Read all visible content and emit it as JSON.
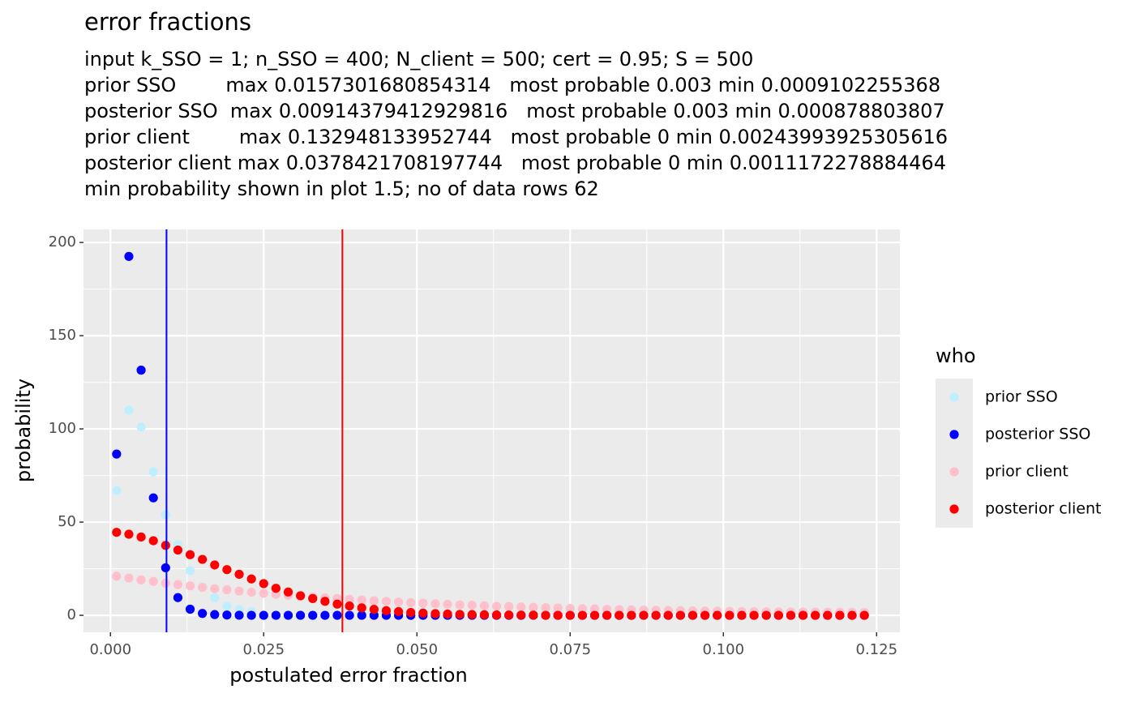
{
  "chart_data": {
    "type": "scatter",
    "title": "error fractions",
    "subtitle": [
      "input k_SSO = 1; n_SSO = 400; N_client = 500; cert = 0.95; S = 500",
      "prior SSO        max 0.0157301680854314   most probable 0.003 min 0.0009102255368",
      "posterior SSO  max 0.00914379412929816   most probable 0.003 min 0.000878803807",
      "prior client        max 0.132948133952744   most probable 0 min 0.00243993925305616",
      "posterior client max 0.0378421708197744   most probable 0 min 0.0011172278884464",
      "min probability shown in plot 1.5; no of data rows 62"
    ],
    "x_label": "postulated error fraction",
    "y_label": "probability",
    "legend_title": "who",
    "x": [
      0.001,
      0.003,
      0.005,
      0.007,
      0.009,
      0.011,
      0.013,
      0.015,
      0.017,
      0.019,
      0.021,
      0.023,
      0.025,
      0.027,
      0.029,
      0.031,
      0.033,
      0.035,
      0.037,
      0.039,
      0.041,
      0.043,
      0.045,
      0.047,
      0.049,
      0.051,
      0.053,
      0.055,
      0.057,
      0.059,
      0.061,
      0.063,
      0.065,
      0.067,
      0.069,
      0.071,
      0.073,
      0.075,
      0.077,
      0.079,
      0.081,
      0.083,
      0.085,
      0.087,
      0.089,
      0.091,
      0.093,
      0.095,
      0.097,
      0.099,
      0.101,
      0.103,
      0.105,
      0.107,
      0.109,
      0.111,
      0.113,
      0.115,
      0.117,
      0.119,
      0.121,
      0.123
    ],
    "series": [
      {
        "name": "prior SSO",
        "color": "#bfefff",
        "values": [
          67,
          110,
          101,
          77,
          54,
          38,
          24,
          15,
          9.5,
          5,
          3,
          2,
          null,
          null,
          null,
          null,
          null,
          null,
          null,
          null,
          null,
          null,
          null,
          null,
          null,
          null,
          null,
          null,
          null,
          null,
          null,
          null,
          null,
          null,
          null,
          null,
          null,
          null,
          null,
          null,
          null,
          null,
          null,
          null,
          null,
          null,
          null,
          null,
          null,
          null,
          null,
          null,
          null,
          null,
          null,
          null,
          null,
          null,
          null,
          null,
          null,
          null
        ]
      },
      {
        "name": "posterior SSO",
        "color": "#0000ff",
        "values": [
          86.5,
          192.5,
          131.5,
          63,
          25.5,
          9.5,
          3.3,
          1,
          0.4,
          0.15,
          0.05,
          0,
          0,
          0,
          0,
          0,
          0,
          0,
          0,
          0,
          0,
          0,
          0,
          0,
          0,
          0,
          0,
          0,
          0,
          0,
          0,
          0,
          0,
          0,
          0,
          0,
          0,
          0,
          0,
          0,
          0,
          0,
          0,
          0,
          0,
          0,
          0,
          0,
          0,
          0,
          0,
          0,
          0,
          0,
          0,
          0,
          0,
          0,
          0,
          0,
          0,
          0
        ]
      },
      {
        "name": "prior client",
        "color": "#ffc0cb",
        "values": [
          21,
          20,
          19,
          18.2,
          17.3,
          16.5,
          15.8,
          15,
          14.3,
          13.7,
          13,
          12.4,
          11.8,
          11.3,
          10.8,
          10.3,
          9.8,
          9.4,
          9,
          8.6,
          8.2,
          7.8,
          7.5,
          7.1,
          6.8,
          6.5,
          6.2,
          5.9,
          5.6,
          5.4,
          5.1,
          4.9,
          4.7,
          4.5,
          4.3,
          4.1,
          3.9,
          3.7,
          3.5,
          3.4,
          3.2,
          3.1,
          2.9,
          2.8,
          2.7,
          2.6,
          2.5,
          2.4,
          2.3,
          2.2,
          2.1,
          2.0,
          1.95,
          1.9,
          1.85,
          1.8,
          1.75,
          1.7,
          1.65,
          1.6,
          1.55,
          1.5
        ]
      },
      {
        "name": "posterior client",
        "color": "#ff0000",
        "values": [
          44.5,
          43.5,
          42,
          40,
          37.5,
          35,
          32.5,
          30,
          27,
          24.5,
          22,
          19.5,
          17,
          14.5,
          12.5,
          10.5,
          9,
          7.5,
          6,
          5,
          4,
          3.2,
          2.5,
          2,
          1.5,
          1.2,
          0.9,
          0.7,
          0.5,
          0.4,
          0.3,
          0.2,
          0.15,
          0.1,
          0.1,
          0,
          0,
          0,
          0,
          0,
          0,
          0,
          0,
          0,
          0,
          0,
          0,
          0,
          0,
          0,
          0,
          0,
          0,
          0,
          0,
          0,
          0,
          0,
          0,
          0,
          0,
          0
        ]
      }
    ],
    "vlines": [
      {
        "x": 0.00914379412929816,
        "color": "#0000ff"
      },
      {
        "x": 0.0378421708197744,
        "color": "#ff0000"
      }
    ],
    "xlim": [
      -0.0044,
      0.1288
    ],
    "ylim": [
      -9.1,
      207
    ],
    "xticks": [
      {
        "value": 0,
        "label": "0.000"
      },
      {
        "value": 0.025,
        "label": "0.025"
      },
      {
        "value": 0.05,
        "label": "0.050"
      },
      {
        "value": 0.075,
        "label": "0.075"
      },
      {
        "value": 0.1,
        "label": "0.100"
      },
      {
        "value": 0.125,
        "label": "0.125"
      }
    ],
    "yticks": [
      0,
      50,
      100,
      150,
      200
    ],
    "grid": true,
    "panel_color": "#ebebeb",
    "legend_position": "right"
  }
}
